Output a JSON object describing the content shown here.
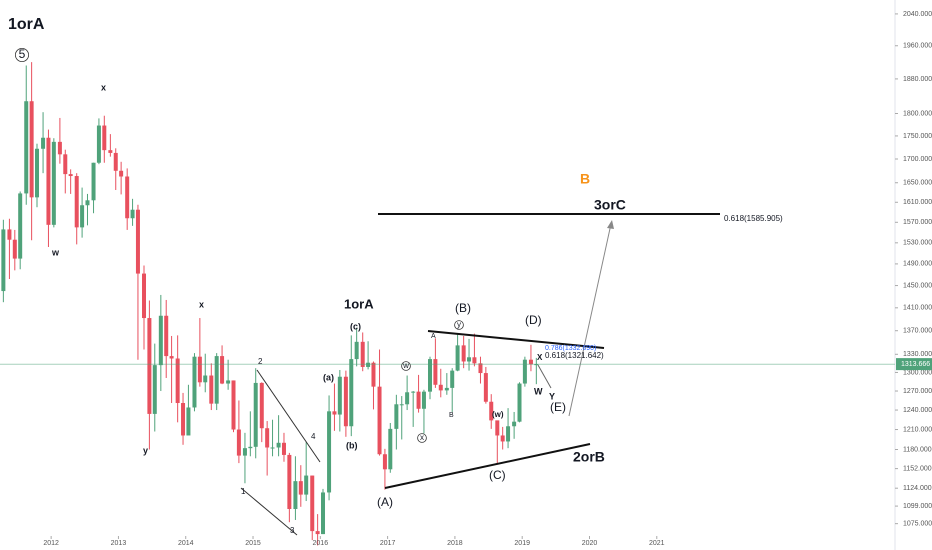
{
  "chart_data": {
    "type": "candlestick",
    "x": [
      2011.29,
      2011.38,
      2011.46,
      2011.54,
      2011.63,
      2011.71,
      2011.79,
      2011.88,
      2011.96,
      2012.04,
      2012.13,
      2012.21,
      2012.29,
      2012.38,
      2012.46,
      2012.54,
      2012.63,
      2012.71,
      2012.79,
      2012.88,
      2012.96,
      2013.04,
      2013.13,
      2013.21,
      2013.29,
      2013.38,
      2013.46,
      2013.54,
      2013.63,
      2013.71,
      2013.79,
      2013.88,
      2013.96,
      2014.04,
      2014.13,
      2014.21,
      2014.29,
      2014.38,
      2014.46,
      2014.54,
      2014.63,
      2014.71,
      2014.79,
      2014.88,
      2014.96,
      2015.04,
      2015.13,
      2015.21,
      2015.29,
      2015.38,
      2015.46,
      2015.54,
      2015.63,
      2015.71,
      2015.79,
      2015.88,
      2015.96,
      2016.04,
      2016.13,
      2016.21,
      2016.29,
      2016.38,
      2016.46,
      2016.54,
      2016.63,
      2016.71,
      2016.79,
      2016.88,
      2016.96,
      2017.04,
      2017.13,
      2017.21,
      2017.29,
      2017.38,
      2017.46,
      2017.54,
      2017.63,
      2017.71,
      2017.79,
      2017.88,
      2017.96,
      2018.04,
      2018.13,
      2018.21,
      2018.29,
      2018.38,
      2018.46,
      2018.54,
      2018.63,
      2018.71,
      2018.79,
      2018.88,
      2018.96,
      2019.04,
      2019.13,
      2019.21
    ],
    "open": [
      1440,
      1556,
      1536,
      1500,
      1628,
      1828,
      1620,
      1722,
      1746,
      1565,
      1737,
      1710,
      1668,
      1664,
      1560,
      1604,
      1614,
      1692,
      1773,
      1719,
      1713,
      1675,
      1663,
      1578,
      1595,
      1472,
      1392,
      1234,
      1312,
      1396,
      1327,
      1323,
      1251,
      1201,
      1244,
      1326,
      1284,
      1295,
      1250,
      1327,
      1282,
      1287,
      1210,
      1171,
      1182,
      1184,
      1283,
      1212,
      1183,
      1183,
      1190,
      1172,
      1095,
      1134,
      1115,
      1142,
      1065,
      1061,
      1118,
      1238,
      1233,
      1293,
      1215,
      1322,
      1351,
      1309,
      1316,
      1277,
      1173,
      1151,
      1211,
      1249,
      1249,
      1268,
      1269,
      1242,
      1269,
      1322,
      1280,
      1271,
      1275,
      1303,
      1345,
      1318,
      1325,
      1315,
      1299,
      1253,
      1224,
      1201,
      1192,
      1215,
      1222,
      1282,
      1321,
      1313
    ],
    "high": [
      1575,
      1577,
      1555,
      1632,
      1912,
      1920,
      1733,
      1803,
      1764,
      1745,
      1790,
      1720,
      1678,
      1670,
      1640,
      1627,
      1692,
      1789,
      1795,
      1754,
      1723,
      1694,
      1680,
      1617,
      1605,
      1487,
      1423,
      1348,
      1433,
      1424,
      1361,
      1362,
      1267,
      1280,
      1332,
      1392,
      1331,
      1315,
      1332,
      1345,
      1321,
      1287,
      1255,
      1205,
      1238,
      1307,
      1284,
      1223,
      1225,
      1232,
      1205,
      1175,
      1170,
      1157,
      1191,
      1142,
      1088,
      1123,
      1263,
      1282,
      1304,
      1303,
      1362,
      1375,
      1367,
      1352,
      1318,
      1338,
      1181,
      1220,
      1264,
      1262,
      1295,
      1270,
      1296,
      1272,
      1326,
      1357,
      1306,
      1299,
      1307,
      1366,
      1361,
      1356,
      1365,
      1326,
      1309,
      1265,
      1222,
      1214,
      1243,
      1237,
      1284,
      1326,
      1346,
      1324
    ],
    "low": [
      1420,
      1462,
      1478,
      1480,
      1605,
      1535,
      1600,
      1670,
      1522,
      1560,
      1690,
      1628,
      1627,
      1527,
      1540,
      1564,
      1588,
      1689,
      1692,
      1705,
      1635,
      1626,
      1555,
      1563,
      1321,
      1338,
      1180,
      1207,
      1270,
      1291,
      1251,
      1221,
      1187,
      1202,
      1238,
      1277,
      1268,
      1240,
      1240,
      1281,
      1272,
      1206,
      1160,
      1131,
      1170,
      1167,
      1191,
      1142,
      1170,
      1170,
      1162,
      1077,
      1080,
      1098,
      1106,
      1053,
      1046,
      1061,
      1107,
      1208,
      1207,
      1199,
      1200,
      1310,
      1302,
      1305,
      1241,
      1171,
      1122,
      1146,
      1180,
      1195,
      1240,
      1214,
      1236,
      1204,
      1257,
      1275,
      1260,
      1264,
      1237,
      1302,
      1307,
      1303,
      1310,
      1282,
      1250,
      1211,
      1160,
      1180,
      1182,
      1196,
      1221,
      1277,
      1302,
      1281
    ],
    "close": [
      1556,
      1536,
      1500,
      1628,
      1828,
      1620,
      1722,
      1746,
      1565,
      1737,
      1710,
      1668,
      1664,
      1560,
      1604,
      1614,
      1692,
      1773,
      1719,
      1713,
      1675,
      1663,
      1578,
      1595,
      1472,
      1392,
      1234,
      1312,
      1396,
      1327,
      1323,
      1251,
      1201,
      1244,
      1326,
      1284,
      1295,
      1250,
      1327,
      1282,
      1287,
      1210,
      1171,
      1182,
      1184,
      1283,
      1212,
      1183,
      1183,
      1190,
      1172,
      1095,
      1134,
      1115,
      1142,
      1065,
      1061,
      1118,
      1238,
      1233,
      1293,
      1215,
      1322,
      1351,
      1309,
      1316,
      1277,
      1173,
      1151,
      1211,
      1249,
      1249,
      1268,
      1269,
      1242,
      1269,
      1322,
      1280,
      1271,
      1275,
      1303,
      1345,
      1318,
      1325,
      1315,
      1299,
      1253,
      1224,
      1201,
      1192,
      1215,
      1222,
      1282,
      1321,
      1313,
      1313.666
    ],
    "up_color": "#4fa27a",
    "down_color": "#e8505e",
    "log_scale": true,
    "xlim": [
      2011.24,
      2024.54
    ],
    "ylim": [
      1040,
      2076
    ],
    "xticks": [
      2012,
      2013,
      2014,
      2015,
      2016,
      2017,
      2018,
      2019,
      2020,
      2021
    ],
    "yticks": [
      {
        "value": 2040,
        "label": "2040.000"
      },
      {
        "value": 1960,
        "label": "1960.000"
      },
      {
        "value": 1880,
        "label": "1880.000"
      },
      {
        "value": 1800,
        "label": "1800.000"
      },
      {
        "value": 1750,
        "label": "1750.000"
      },
      {
        "value": 1700,
        "label": "1700.000"
      },
      {
        "value": 1650,
        "label": "1650.000"
      },
      {
        "value": 1610,
        "label": "1610.000"
      },
      {
        "value": 1570,
        "label": "1570.000"
      },
      {
        "value": 1530,
        "label": "1530.000"
      },
      {
        "value": 1490,
        "label": "1490.000"
      },
      {
        "value": 1450,
        "label": "1450.000"
      },
      {
        "value": 1410,
        "label": "1410.000"
      },
      {
        "value": 1370,
        "label": "1370.000"
      },
      {
        "value": 1330,
        "label": "1330.000"
      },
      {
        "value": 1300,
        "label": "1300.000"
      },
      {
        "value": 1270,
        "label": "1270.000"
      },
      {
        "value": 1240,
        "label": "1240.000"
      },
      {
        "value": 1210,
        "label": "1210.000"
      },
      {
        "value": 1180,
        "label": "1180.000"
      },
      {
        "value": 1152,
        "label": "1152.000"
      },
      {
        "value": 1124,
        "label": "1124.000"
      },
      {
        "value": 1099,
        "label": "1099.000"
      },
      {
        "value": 1075,
        "label": "1075.000"
      }
    ],
    "last_price": 1313.666,
    "annotations": [
      "1orA",
      "5",
      "x",
      "w",
      "y",
      "x",
      "2",
      "4",
      "1",
      "3",
      "(a)",
      "(b)",
      "(c)",
      "1orA",
      "(A)",
      "w",
      "x",
      "y",
      "(B)",
      "A",
      "B",
      "(w)",
      "(C)",
      "(D)",
      "(E)",
      "2orB",
      "3orC",
      "B",
      "0.618(1585.905)",
      "0.786(1332.690)",
      "0.618(1321.642)",
      "X",
      "W",
      "Y"
    ]
  }
}
